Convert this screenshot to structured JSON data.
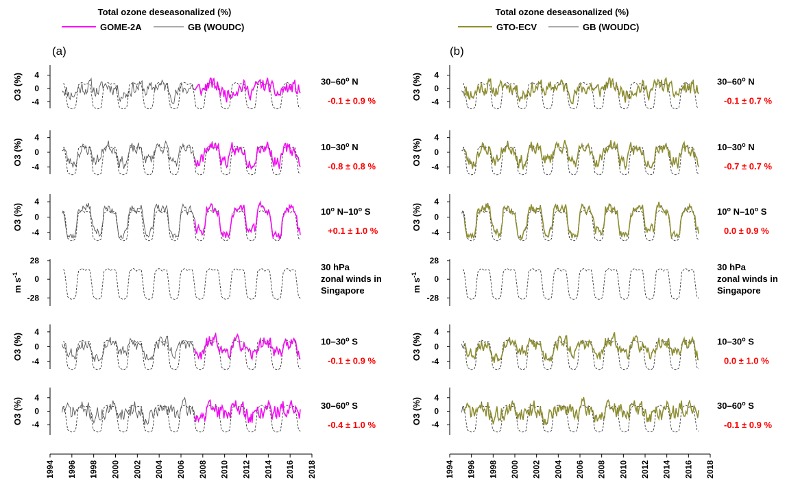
{
  "figure": {
    "x_ticks": [
      "1994",
      "1996",
      "1998",
      "2000",
      "2002",
      "2004",
      "2006",
      "2008",
      "2010",
      "2012",
      "2014",
      "2016",
      "2018"
    ],
    "o3_ylabel": "O3 (%)",
    "wind_ylabel_main": "m s",
    "wind_ylabel_sup": "-1"
  },
  "chart_data": [
    {
      "type": "line",
      "panel_label": "(a)",
      "title": "Total ozone deseasonalized (%)",
      "legend": [
        {
          "name": "GOME-2A",
          "color": "#ff00ff"
        },
        {
          "name": "GB (WOUDC)",
          "color": "#555555"
        }
      ],
      "xlim": [
        1994,
        2018
      ],
      "satellite_start": 2007.2,
      "rows": [
        {
          "kind": "o3",
          "region_main": "30–60",
          "region_sup": "o",
          "region_rest": " N",
          "trend": "-0.1 ± 0.9 %",
          "yticks": [
            "4",
            "0",
            "-4"
          ],
          "ylim": [
            -6,
            7
          ],
          "seed": 11,
          "amp": 1.8,
          "qbo": 0.8
        },
        {
          "kind": "o3",
          "region_main": "10–30",
          "region_sup": "o",
          "region_rest": " N",
          "trend": "-0.8 ± 0.8 %",
          "yticks": [
            "4",
            "0",
            "-4"
          ],
          "ylim": [
            -6,
            6
          ],
          "seed": 23,
          "amp": 1.4,
          "qbo": 1.8
        },
        {
          "kind": "o3",
          "region_main": "10",
          "region_sup": "o",
          "region_rest": " N–10",
          "region_sup2": "o",
          "region_rest2": " S",
          "trend": "+0.1 ± 1.0 %",
          "yticks": [
            "4",
            "0",
            "-4"
          ],
          "ylim": [
            -6,
            6
          ],
          "seed": 37,
          "amp": 1.0,
          "qbo": 3.4
        },
        {
          "kind": "wind",
          "line1": "30 hPa",
          "line2": "zonal winds in",
          "line3": "Singapore",
          "yticks": [
            "28",
            "0",
            "-28"
          ],
          "ylim": [
            -40,
            30
          ]
        },
        {
          "kind": "o3",
          "region_main": "10–30",
          "region_sup": "o",
          "region_rest": " S",
          "trend": "-0.1 ± 0.9 %",
          "yticks": [
            "4",
            "0",
            "-4"
          ],
          "ylim": [
            -6,
            6
          ],
          "seed": 53,
          "amp": 1.4,
          "qbo": 1.5
        },
        {
          "kind": "o3",
          "region_main": "30–60",
          "region_sup": "o",
          "region_rest": " S",
          "trend": "-0.4 ± 1.0 %",
          "yticks": [
            "4",
            "0",
            "-4"
          ],
          "ylim": [
            -7,
            7
          ],
          "seed": 71,
          "amp": 2.0,
          "qbo": 0.6
        }
      ]
    },
    {
      "type": "line",
      "panel_label": "(b)",
      "title": "Total ozone deseasonalized (%)",
      "legend": [
        {
          "name": "GTO-ECV",
          "color": "#8f8f2a"
        },
        {
          "name": "GB (WOUDC)",
          "color": "#555555"
        }
      ],
      "xlim": [
        1994,
        2018
      ],
      "satellite_start": 1995.3,
      "rows": [
        {
          "kind": "o3",
          "region_main": "30–60",
          "region_sup": "o",
          "region_rest": " N",
          "trend": "-0.1 ± 0.7 %",
          "yticks": [
            "4",
            "0",
            "-4"
          ],
          "ylim": [
            -6,
            7
          ],
          "seed": 11,
          "amp": 1.8,
          "qbo": 0.8
        },
        {
          "kind": "o3",
          "region_main": "10–30",
          "region_sup": "o",
          "region_rest": " N",
          "trend": "-0.7 ± 0.7 %",
          "yticks": [
            "4",
            "0",
            "-4"
          ],
          "ylim": [
            -6,
            6
          ],
          "seed": 23,
          "amp": 1.4,
          "qbo": 1.8
        },
        {
          "kind": "o3",
          "region_main": "10",
          "region_sup": "o",
          "region_rest": " N–10",
          "region_sup2": "o",
          "region_rest2": " S",
          "trend": "0.0 ± 0.9 %",
          "yticks": [
            "4",
            "0",
            "-4"
          ],
          "ylim": [
            -6,
            6
          ],
          "seed": 37,
          "amp": 1.0,
          "qbo": 3.4
        },
        {
          "kind": "wind",
          "line1": "30 hPa",
          "line2": "zonal winds in",
          "line3": "Singapore",
          "yticks": [
            "28",
            "0",
            "-28"
          ],
          "ylim": [
            -40,
            30
          ]
        },
        {
          "kind": "o3",
          "region_main": "10–30",
          "region_sup": "o",
          "region_rest": " S",
          "trend": "0.0 ± 1.0 %",
          "yticks": [
            "4",
            "0",
            "-4"
          ],
          "ylim": [
            -6,
            6
          ],
          "seed": 53,
          "amp": 1.4,
          "qbo": 1.5
        },
        {
          "kind": "o3",
          "region_main": "30–60",
          "region_sup": "o",
          "region_rest": " S",
          "trend": "-0.1 ± 0.9 %",
          "yticks": [
            "4",
            "0",
            "-4"
          ],
          "ylim": [
            -7,
            7
          ],
          "seed": 71,
          "amp": 2.0,
          "qbo": 0.6
        }
      ]
    }
  ]
}
